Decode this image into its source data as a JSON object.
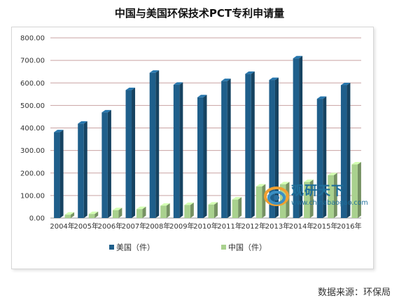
{
  "chart_data": {
    "type": "bar",
    "title": "中国与美国环保技术PCT专利申请量",
    "categories": [
      "2004年",
      "2005年",
      "2006年",
      "2007年",
      "2008年",
      "2009年",
      "2010年",
      "2011年",
      "2012年",
      "2013年",
      "2014年",
      "2015年",
      "2016年"
    ],
    "series": [
      {
        "name": "美国（件）",
        "color": "#1f5f8b",
        "values": [
          381,
          419,
          469,
          568,
          645,
          592,
          536,
          608,
          640,
          613,
          709,
          529,
          590
        ]
      },
      {
        "name": "中国（件）",
        "color": "#a9d18e",
        "values": [
          15,
          18,
          35,
          40,
          55,
          58,
          60,
          82,
          140,
          150,
          160,
          190,
          238
        ]
      }
    ],
    "y_ticks": [
      "0.00",
      "100.00",
      "200.00",
      "300.00",
      "400.00",
      "500.00",
      "600.00",
      "700.00",
      "800.00"
    ],
    "ylim": [
      0,
      800
    ],
    "xlabel": "",
    "ylabel": "",
    "legend_position": "bottom",
    "grid": true,
    "gridline_color": "#c9a3a3"
  },
  "source": "数据来源：环保局",
  "watermark": {
    "title": "观研天下",
    "url": "www.chinabaogao.com",
    "icon": "swirl-logo-icon"
  }
}
